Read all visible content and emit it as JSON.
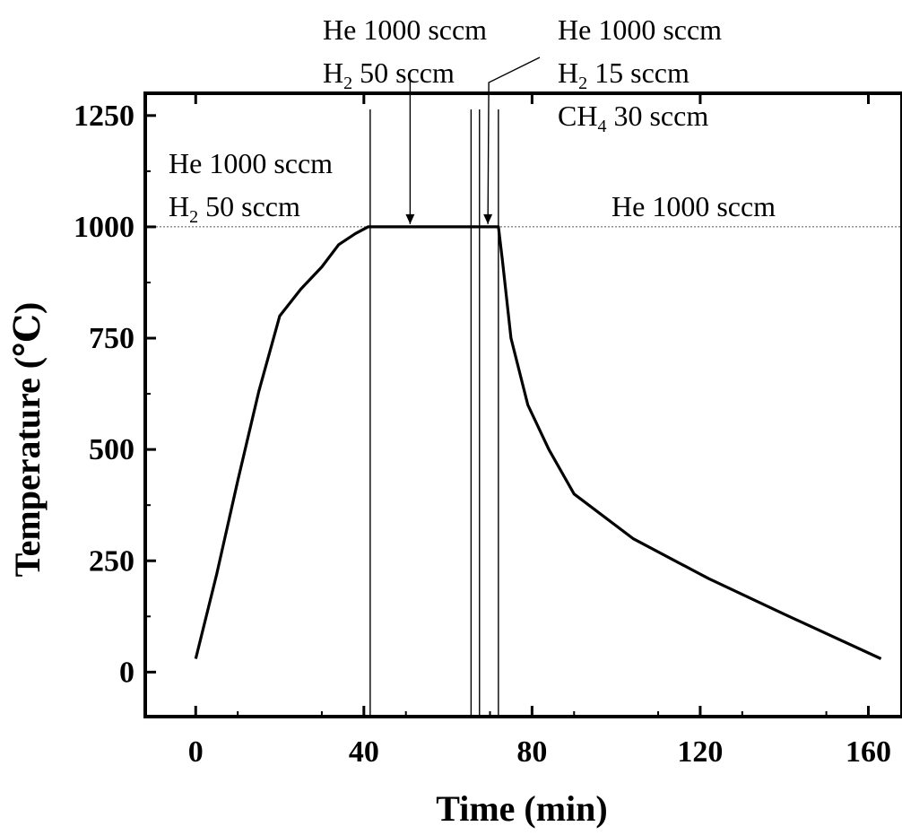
{
  "chart_data": {
    "type": "line",
    "xlabel": "Time (min)",
    "ylabel": "Temperature (℃)",
    "xlim": [
      -12,
      168
    ],
    "ylim": [
      -100,
      1300
    ],
    "xticks": [
      0,
      40,
      80,
      120,
      160
    ],
    "yticks": [
      0,
      250,
      500,
      750,
      1000,
      1250
    ],
    "grid": false,
    "series": [
      {
        "x": [
          0,
          5,
          10,
          15,
          20,
          25,
          30,
          34,
          38,
          41,
          72,
          73,
          75,
          79,
          84,
          90,
          104,
          122,
          140,
          163
        ],
        "y": [
          30,
          220,
          430,
          630,
          800,
          860,
          910,
          960,
          985,
          1000,
          1000,
          920,
          750,
          600,
          500,
          400,
          300,
          210,
          130,
          30
        ]
      }
    ],
    "reference_lines": {
      "horizontal_y": 1000,
      "vertical_x": [
        41.5,
        65.5,
        67.5,
        72
      ]
    },
    "annotations": [
      {
        "lines": [
          "He 1000 sccm",
          "H|2| 50 sccm"
        ],
        "region": "heating"
      },
      {
        "lines": [
          "He 1000 sccm",
          "H|2| 50 sccm"
        ],
        "region": "annealing",
        "arrow_x": 51
      },
      {
        "lines": [
          "He 1000 sccm",
          "H|2| 15 sccm",
          "CH|4| 30 sccm"
        ],
        "region": "growth",
        "arrow_x": 69.5
      },
      {
        "lines": [
          "He 1000 sccm"
        ],
        "region": "cooling"
      }
    ]
  }
}
